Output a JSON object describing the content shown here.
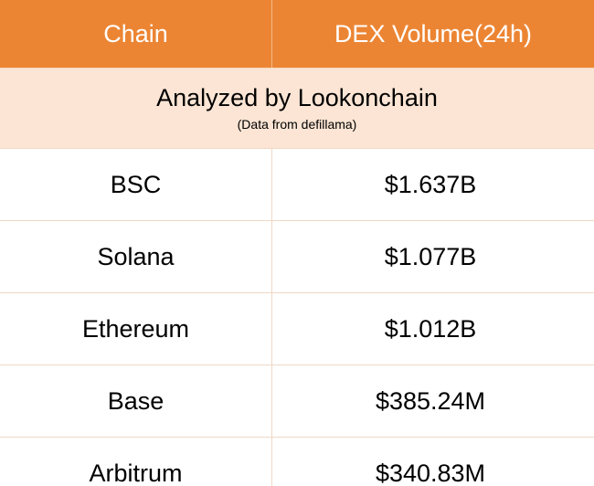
{
  "header": {
    "chain": "Chain",
    "volume": "DEX Volume(24h)"
  },
  "caption": {
    "title": "Analyzed by Lookonchain",
    "subtitle": "(Data from defillama)"
  },
  "rows": [
    {
      "chain": "BSC",
      "volume": "$1.637B"
    },
    {
      "chain": "Solana",
      "volume": "$1.077B"
    },
    {
      "chain": "Ethereum",
      "volume": "$1.012B"
    },
    {
      "chain": "Base",
      "volume": "$385.24M"
    },
    {
      "chain": "Arbitrum",
      "volume": "$340.83M"
    }
  ],
  "colors": {
    "header_bg": "#ec8533",
    "caption_bg": "#fce5d4",
    "border": "#f0d8c6"
  }
}
